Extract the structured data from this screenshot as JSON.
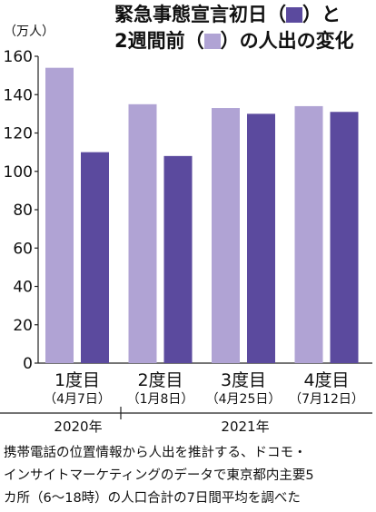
{
  "header": {
    "title_line1_prefix": "緊急事態宣言初日（",
    "title_line1_suffix": "）と",
    "title_line2_prefix": "2週間前（",
    "title_line2_suffix": "）の人出の変化",
    "current_color": "#5b4a9e",
    "before_color": "#b0a3d4"
  },
  "chart_data": {
    "type": "bar",
    "unit_label": "（万人）",
    "ylim": [
      0,
      160
    ],
    "yticks": [
      "0",
      "20",
      "40",
      "60",
      "80",
      "100",
      "120",
      "140",
      "160"
    ],
    "grid": false,
    "categories": [
      {
        "label": "1度目",
        "date": "（4月7日）"
      },
      {
        "label": "2度目",
        "date": "（1月8日）"
      },
      {
        "label": "3度目",
        "date": "（4月25日）"
      },
      {
        "label": "4度目",
        "date": "（7月12日）"
      }
    ],
    "series": [
      {
        "values": [
          154,
          135,
          133,
          134
        ],
        "color": "#b0a3d4"
      },
      {
        "values": [
          110,
          108,
          130,
          131
        ],
        "color": "#5b4a9e"
      }
    ],
    "year_groups": [
      {
        "label": "2020年"
      },
      {
        "label": "2021年"
      }
    ]
  },
  "note": "携帯電話の位置情報から人出を推計する、ドコモ・\nインサイトマーケティングのデータで東京都内主要5\nカ所（6〜18時）の人口合計の7日間平均を調べた"
}
